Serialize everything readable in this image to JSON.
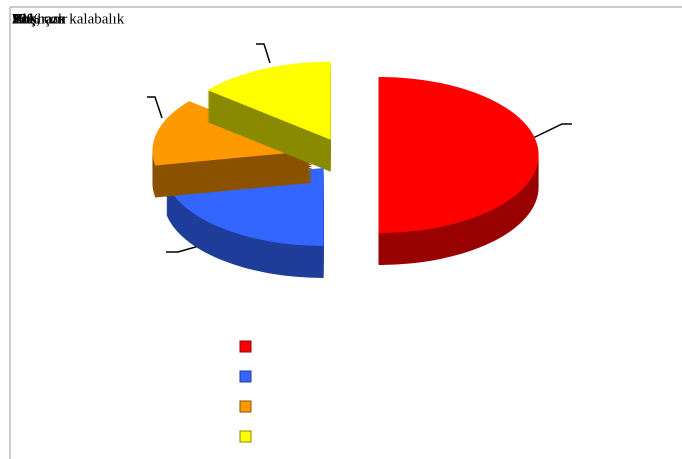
{
  "chart_data": {
    "type": "pie",
    "categories": [
      "Yok, çok kalabalık",
      "Hoş",
      "Bol hazır",
      "Alışıram"
    ],
    "values": [
      50,
      22,
      14,
      14
    ],
    "value_labels": [
      "50%",
      "22%",
      "14%",
      "14%"
    ],
    "colors": [
      "#ff0000",
      "#3366ff",
      "#ff9900",
      "#ffff00"
    ],
    "side_colors": [
      "#990000",
      "#1f3d99",
      "#8a5200",
      "#8a8a00"
    ]
  }
}
